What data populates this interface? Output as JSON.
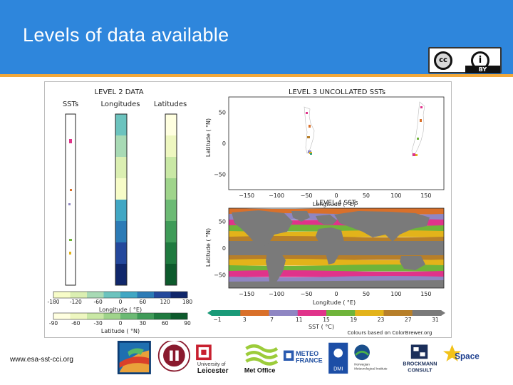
{
  "slide": {
    "title": "Levels of data available",
    "url": "www.esa-sst-cci.org",
    "license": {
      "cc": "cc",
      "by_symbol": "i",
      "by_label": "BY"
    }
  },
  "figure": {
    "level2": {
      "title": "LEVEL 2 DATA",
      "columns": [
        "SSTs",
        "Longitudes",
        "Latitudes"
      ],
      "lon_scale": {
        "ticks": [
          "-180",
          "-120",
          "-60",
          "0",
          "60",
          "120",
          "180"
        ],
        "label": "Longitude ( °E)"
      },
      "lat_scale": {
        "ticks": [
          "-90",
          "-60",
          "-30",
          "0",
          "30",
          "60",
          "90"
        ],
        "label": "Latitude ( °N)"
      }
    },
    "level3": {
      "title": "LEVEL 3 UNCOLLATED SSTs",
      "y_ticks": [
        "50",
        "0",
        "−50"
      ],
      "x_ticks": [
        "−150",
        "−100",
        "−50",
        "0",
        "50",
        "100",
        "150"
      ],
      "ylabel": "Latitude ( °N)",
      "xlabel": "Longitude ( °E)"
    },
    "level4": {
      "title": "LEVEL 4 SSTs",
      "y_ticks": [
        "50",
        "0",
        "−50"
      ],
      "x_ticks": [
        "−150",
        "−100",
        "−50",
        "0",
        "50",
        "100",
        "150"
      ],
      "ylabel": "Latitude ( °N)",
      "xlabel": "Longitude ( °E)"
    },
    "sst_scale": {
      "ticks": [
        "−1",
        "3",
        "7",
        "11",
        "15",
        "19",
        "23",
        "27",
        "31"
      ],
      "label": "SST ( °C)",
      "note": "Colours based on ColorBrewer.org"
    }
  },
  "logos": {
    "leicester": [
      "University of",
      "Leicester"
    ],
    "metoffice": "Met Office",
    "meteofrance": [
      "METEO",
      "FRANCE"
    ],
    "dmi": "DMI",
    "norwegian": [
      "Norwegian",
      "Meteorological Institute"
    ],
    "brockmann": [
      "BROCKMANN",
      "CONSULT"
    ],
    "space": "Space"
  },
  "colors": {
    "title_bar": "#2e86dc",
    "accent": "#f2a83a",
    "sst_palette": [
      "#1a9a78",
      "#d9702a",
      "#8f86c3",
      "#e0338a",
      "#6fb43a",
      "#e3b31a",
      "#b77f2a",
      "#7a7a7a"
    ],
    "longitude_palette": [
      "#f7fcc8",
      "#dbefb2",
      "#a8dab5",
      "#6cc3be",
      "#41a7c4",
      "#2c7bb6",
      "#24489c",
      "#10276b"
    ],
    "latitude_palette": [
      "#ffffe0",
      "#eef7c0",
      "#c9e8a5",
      "#9fd48b",
      "#6cba74",
      "#3f9b58",
      "#1f7a3f",
      "#0d5a2c"
    ]
  }
}
